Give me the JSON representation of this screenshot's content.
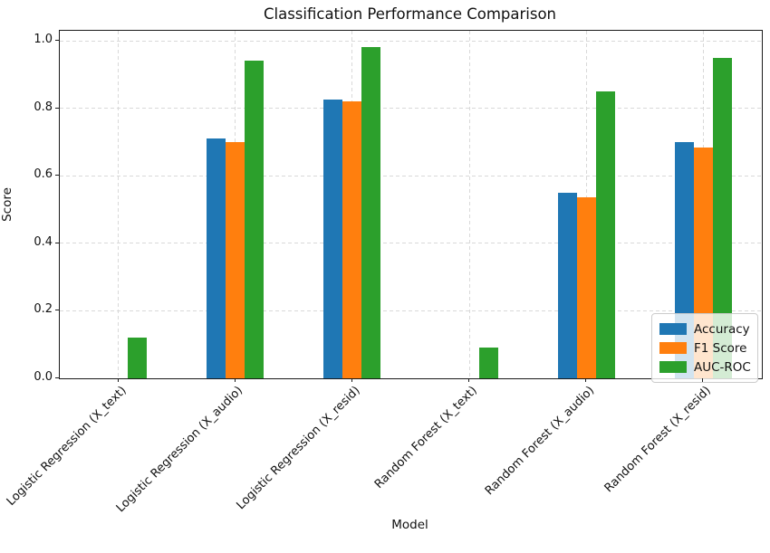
{
  "title": "Classification Performance Comparison",
  "chart_data": {
    "type": "bar",
    "title": "Classification Performance Comparison",
    "xlabel": "Model",
    "ylabel": "Score",
    "ylim": [
      0.0,
      1.03
    ],
    "grid": true,
    "grid_style": "dashed",
    "legend_position": "lower right",
    "yticks": [
      0.0,
      0.2,
      0.4,
      0.6,
      0.8,
      1.0
    ],
    "ytick_labels": [
      "0.0",
      "0.2",
      "0.4",
      "0.6",
      "0.8",
      "1.0"
    ],
    "categories": [
      "Logistic Regression (X_text)",
      "Logistic Regression (X_audio)",
      "Logistic Regression (X_resid)",
      "Random Forest (X_text)",
      "Random Forest (X_audio)",
      "Random Forest (X_resid)"
    ],
    "series": [
      {
        "name": "Accuracy",
        "color": "#1f77b4",
        "values": [
          0.0,
          0.71,
          0.825,
          0.0,
          0.55,
          0.7
        ]
      },
      {
        "name": "F1 Score",
        "color": "#ff7f0e",
        "values": [
          0.0,
          0.7,
          0.82,
          0.0,
          0.535,
          0.685
        ]
      },
      {
        "name": "AUC-ROC",
        "color": "#2ca02c",
        "values": [
          0.12,
          0.94,
          0.98,
          0.09,
          0.85,
          0.95
        ]
      }
    ]
  }
}
